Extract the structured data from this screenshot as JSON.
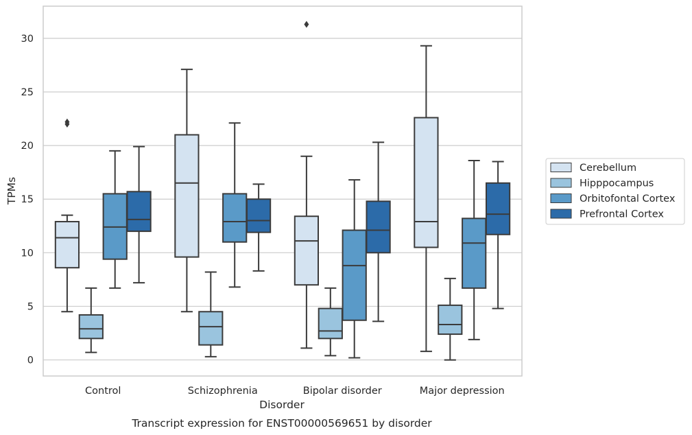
{
  "chart_data": {
    "type": "box",
    "title": "",
    "xlabel": "Disorder",
    "ylabel": "TPMs",
    "caption": "Transcript expression for ENST00000569651 by disorder",
    "ylim": [
      -1.5,
      33
    ],
    "yticks": [
      "0",
      "5",
      "10",
      "15",
      "20",
      "25",
      "30"
    ],
    "grid": "horizontal",
    "legend_position": "right",
    "categories": [
      "Control",
      "Schizophrenia",
      "Bipolar disorder",
      "Major depression"
    ],
    "series": [
      {
        "name": "Cerebellum",
        "color": "#d4e3f1",
        "boxes": [
          {
            "whislo": 4.5,
            "q1": 8.6,
            "med": 11.4,
            "q3": 12.9,
            "whishi": 13.5,
            "fliers": [
              22.0,
              22.2
            ]
          },
          {
            "whislo": 4.5,
            "q1": 9.6,
            "med": 16.5,
            "q3": 21.0,
            "whishi": 27.1,
            "fliers": []
          },
          {
            "whislo": 1.1,
            "q1": 7.0,
            "med": 11.1,
            "q3": 13.4,
            "whishi": 19.0,
            "fliers": [
              31.3
            ]
          },
          {
            "whislo": 0.8,
            "q1": 10.5,
            "med": 12.9,
            "q3": 22.6,
            "whishi": 29.3,
            "fliers": []
          }
        ]
      },
      {
        "name": "Hipppocampus",
        "color": "#9ac4de",
        "boxes": [
          {
            "whislo": 0.7,
            "q1": 2.0,
            "med": 2.9,
            "q3": 4.2,
            "whishi": 6.7,
            "fliers": []
          },
          {
            "whislo": 0.3,
            "q1": 1.4,
            "med": 3.1,
            "q3": 4.5,
            "whishi": 8.2,
            "fliers": []
          },
          {
            "whislo": 0.4,
            "q1": 2.0,
            "med": 2.7,
            "q3": 4.8,
            "whishi": 6.7,
            "fliers": []
          },
          {
            "whislo": 0.0,
            "q1": 2.4,
            "med": 3.3,
            "q3": 5.1,
            "whishi": 7.6,
            "fliers": []
          }
        ]
      },
      {
        "name": "Orbitofontal Cortex",
        "color": "#5a9ac8",
        "boxes": [
          {
            "whislo": 6.7,
            "q1": 9.4,
            "med": 12.4,
            "q3": 15.5,
            "whishi": 19.5,
            "fliers": []
          },
          {
            "whislo": 6.8,
            "q1": 11.0,
            "med": 12.9,
            "q3": 15.5,
            "whishi": 22.1,
            "fliers": []
          },
          {
            "whislo": 0.2,
            "q1": 3.7,
            "med": 8.8,
            "q3": 12.1,
            "whishi": 16.8,
            "fliers": []
          },
          {
            "whislo": 1.9,
            "q1": 6.7,
            "med": 10.9,
            "q3": 13.2,
            "whishi": 18.6,
            "fliers": []
          }
        ]
      },
      {
        "name": "Prefrontal Cortex",
        "color": "#2c6ba9",
        "boxes": [
          {
            "whislo": 7.2,
            "q1": 12.0,
            "med": 13.1,
            "q3": 15.7,
            "whishi": 19.9,
            "fliers": []
          },
          {
            "whislo": 8.3,
            "q1": 11.9,
            "med": 13.0,
            "q3": 15.0,
            "whishi": 16.4,
            "fliers": []
          },
          {
            "whislo": 3.6,
            "q1": 10.0,
            "med": 12.1,
            "q3": 14.8,
            "whishi": 20.3,
            "fliers": []
          },
          {
            "whislo": 4.8,
            "q1": 11.7,
            "med": 13.6,
            "q3": 16.5,
            "whishi": 18.5,
            "fliers": []
          }
        ]
      }
    ]
  }
}
